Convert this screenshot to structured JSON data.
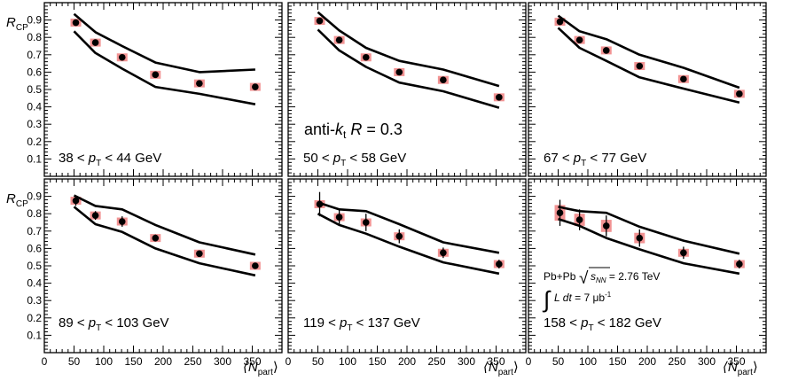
{
  "chart_data": {
    "type": "scatter",
    "ylabel_main": "R",
    "ylabel_sub": "CP",
    "xlabel_main": "⟨N",
    "xlabel_sub": "part",
    "xlabel_close": "⟩",
    "xlim": [
      0,
      400
    ],
    "ylim": [
      0,
      1.0
    ],
    "x_ticks": [
      "0",
      "50",
      "100",
      "150",
      "200",
      "250",
      "300",
      "350"
    ],
    "y_ticks": [
      "0.1",
      "0.2",
      "0.3",
      "0.4",
      "0.5",
      "0.6",
      "0.7",
      "0.8",
      "0.9"
    ],
    "colors": {
      "points": "#000000",
      "syst_box": "#f08080",
      "band": "#000000"
    },
    "algo_label": {
      "prefix": "anti-",
      "k": "k",
      "k_sub": "t",
      "r": "R",
      "value": " = 0.3"
    },
    "collision_label": {
      "system": "Pb+Pb",
      "sqrt": "√",
      "s": "s",
      "s_sub": "NN",
      "energy": " = 2.76 TeV",
      "integral": "∫",
      "lumi_L": "L dt",
      "lumi_value": " = 7 μb",
      "lumi_exp": "-1"
    },
    "panels": [
      {
        "label_pre": "38 < ",
        "label_p": "p",
        "label_sub": "T",
        "label_post": " < 44 GeV",
        "points": [
          {
            "x": 53,
            "y": 0.885,
            "err": 0.0,
            "sys": 0.008
          },
          {
            "x": 86,
            "y": 0.77,
            "err": 0.0,
            "sys": 0.008
          },
          {
            "x": 131,
            "y": 0.685,
            "err": 0.0,
            "sys": 0.008
          },
          {
            "x": 187,
            "y": 0.585,
            "err": 0.0,
            "sys": 0.01
          },
          {
            "x": 261,
            "y": 0.535,
            "err": 0.0,
            "sys": 0.01
          },
          {
            "x": 355,
            "y": 0.515,
            "err": 0.0,
            "sys": 0.012
          }
        ],
        "upper": [
          [
            50,
            0.935
          ],
          [
            86,
            0.83
          ],
          [
            131,
            0.75
          ],
          [
            187,
            0.655
          ],
          [
            261,
            0.6
          ],
          [
            355,
            0.615
          ]
        ],
        "lower": [
          [
            50,
            0.835
          ],
          [
            86,
            0.71
          ],
          [
            131,
            0.62
          ],
          [
            187,
            0.515
          ],
          [
            261,
            0.475
          ],
          [
            355,
            0.415
          ]
        ]
      },
      {
        "label_pre": "50 < ",
        "label_p": "p",
        "label_sub": "T",
        "label_post": " < 58 GeV",
        "points": [
          {
            "x": 53,
            "y": 0.895,
            "err": 0.0,
            "sys": 0.008
          },
          {
            "x": 86,
            "y": 0.785,
            "err": 0.0,
            "sys": 0.008
          },
          {
            "x": 131,
            "y": 0.685,
            "err": 0.0,
            "sys": 0.008
          },
          {
            "x": 187,
            "y": 0.6,
            "err": 0.0,
            "sys": 0.008
          },
          {
            "x": 261,
            "y": 0.555,
            "err": 0.0,
            "sys": 0.008
          },
          {
            "x": 355,
            "y": 0.455,
            "err": 0.0,
            "sys": 0.01
          }
        ],
        "upper": [
          [
            50,
            0.945
          ],
          [
            86,
            0.84
          ],
          [
            131,
            0.74
          ],
          [
            187,
            0.665
          ],
          [
            261,
            0.615
          ],
          [
            355,
            0.52
          ]
        ],
        "lower": [
          [
            50,
            0.845
          ],
          [
            86,
            0.725
          ],
          [
            131,
            0.63
          ],
          [
            187,
            0.54
          ],
          [
            261,
            0.49
          ],
          [
            355,
            0.395
          ]
        ]
      },
      {
        "label_pre": "67 < ",
        "label_p": "p",
        "label_sub": "T",
        "label_post": " < 77 GeV",
        "points": [
          {
            "x": 53,
            "y": 0.89,
            "err": 0.0,
            "sys": 0.01
          },
          {
            "x": 86,
            "y": 0.785,
            "err": 0.015,
            "sys": 0.01
          },
          {
            "x": 131,
            "y": 0.725,
            "err": 0.0,
            "sys": 0.012
          },
          {
            "x": 187,
            "y": 0.635,
            "err": 0.0,
            "sys": 0.01
          },
          {
            "x": 261,
            "y": 0.56,
            "err": 0.0,
            "sys": 0.008
          },
          {
            "x": 355,
            "y": 0.475,
            "err": 0.0,
            "sys": 0.01
          }
        ],
        "upper": [
          [
            50,
            0.925
          ],
          [
            86,
            0.835
          ],
          [
            131,
            0.79
          ],
          [
            187,
            0.7
          ],
          [
            261,
            0.625
          ],
          [
            355,
            0.51
          ]
        ],
        "lower": [
          [
            50,
            0.855
          ],
          [
            86,
            0.74
          ],
          [
            131,
            0.665
          ],
          [
            187,
            0.57
          ],
          [
            261,
            0.505
          ],
          [
            355,
            0.425
          ]
        ]
      },
      {
        "label_pre": "89 < ",
        "label_p": "p",
        "label_sub": "T",
        "label_post": " < 103 GeV",
        "points": [
          {
            "x": 53,
            "y": 0.875,
            "err": 0.03,
            "sys": 0.015
          },
          {
            "x": 86,
            "y": 0.79,
            "err": 0.025,
            "sys": 0.015
          },
          {
            "x": 131,
            "y": 0.755,
            "err": 0.03,
            "sys": 0.02
          },
          {
            "x": 187,
            "y": 0.66,
            "err": 0.02,
            "sys": 0.018
          },
          {
            "x": 261,
            "y": 0.57,
            "err": 0.015,
            "sys": 0.012
          },
          {
            "x": 355,
            "y": 0.5,
            "err": 0.012,
            "sys": 0.01
          }
        ],
        "upper": [
          [
            50,
            0.905
          ],
          [
            86,
            0.845
          ],
          [
            131,
            0.825
          ],
          [
            187,
            0.735
          ],
          [
            261,
            0.635
          ],
          [
            355,
            0.565
          ]
        ],
        "lower": [
          [
            50,
            0.84
          ],
          [
            86,
            0.74
          ],
          [
            131,
            0.695
          ],
          [
            187,
            0.6
          ],
          [
            261,
            0.515
          ],
          [
            355,
            0.445
          ]
        ]
      },
      {
        "label_pre": "119 < ",
        "label_p": "p",
        "label_sub": "T",
        "label_post": " < 137 GeV",
        "points": [
          {
            "x": 53,
            "y": 0.855,
            "err": 0.07,
            "sys": 0.02
          },
          {
            "x": 86,
            "y": 0.78,
            "err": 0.05,
            "sys": 0.015
          },
          {
            "x": 131,
            "y": 0.75,
            "err": 0.05,
            "sys": 0.015
          },
          {
            "x": 187,
            "y": 0.67,
            "err": 0.04,
            "sys": 0.012
          },
          {
            "x": 261,
            "y": 0.575,
            "err": 0.03,
            "sys": 0.01
          },
          {
            "x": 355,
            "y": 0.51,
            "err": 0.025,
            "sys": 0.01
          }
        ],
        "upper": [
          [
            50,
            0.865
          ],
          [
            86,
            0.825
          ],
          [
            131,
            0.815
          ],
          [
            187,
            0.74
          ],
          [
            261,
            0.635
          ],
          [
            355,
            0.575
          ]
        ],
        "lower": [
          [
            50,
            0.8
          ],
          [
            86,
            0.735
          ],
          [
            131,
            0.685
          ],
          [
            187,
            0.61
          ],
          [
            261,
            0.52
          ],
          [
            355,
            0.455
          ]
        ]
      },
      {
        "label_pre": "158 < ",
        "label_p": "p",
        "label_sub": "T",
        "label_post": " < 182 GeV",
        "points": [
          {
            "x": 53,
            "y": 0.805,
            "err": 0.075,
            "sys": 0.045
          },
          {
            "x": 86,
            "y": 0.765,
            "err": 0.06,
            "sys": 0.035
          },
          {
            "x": 131,
            "y": 0.73,
            "err": 0.06,
            "sys": 0.035
          },
          {
            "x": 187,
            "y": 0.66,
            "err": 0.05,
            "sys": 0.03
          },
          {
            "x": 261,
            "y": 0.575,
            "err": 0.035,
            "sys": 0.018
          },
          {
            "x": 355,
            "y": 0.51,
            "err": 0.025,
            "sys": 0.012
          }
        ],
        "upper": [
          [
            50,
            0.84
          ],
          [
            86,
            0.815
          ],
          [
            131,
            0.805
          ],
          [
            187,
            0.725
          ],
          [
            261,
            0.645
          ],
          [
            355,
            0.57
          ]
        ],
        "lower": [
          [
            50,
            0.77
          ],
          [
            86,
            0.73
          ],
          [
            131,
            0.66
          ],
          [
            187,
            0.595
          ],
          [
            261,
            0.515
          ],
          [
            355,
            0.455
          ]
        ]
      }
    ]
  }
}
